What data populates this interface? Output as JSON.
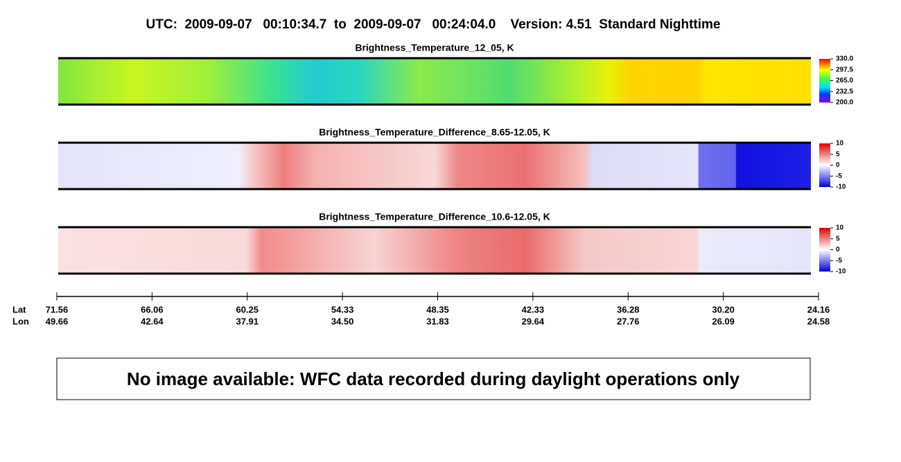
{
  "title": "UTC:  2009-09-07   00:10:34.7  to  2009-09-07   00:24:04.0    Version: 4.51  Standard Nighttime",
  "panels": [
    {
      "title": "Brightness_Temperature_12_05, K",
      "clim": [
        200,
        330
      ],
      "cticks": [
        {
          "value": 330,
          "label": "330.0"
        },
        {
          "value": 297.5,
          "label": "297.5"
        },
        {
          "value": 265,
          "label": "265.0"
        },
        {
          "value": 232.5,
          "label": "232.5"
        },
        {
          "value": 200,
          "label": "200.0"
        }
      ]
    },
    {
      "title": "Brightness_Temperature_Difference_8.65-12.05, K",
      "clim": [
        -10,
        10
      ],
      "cticks": [
        10,
        5,
        0,
        -5,
        -10
      ]
    },
    {
      "title": "Brightness_Temperature_Difference_10.6-12.05, K",
      "clim": [
        -10,
        10
      ],
      "cticks": [
        10,
        5,
        0,
        -5,
        -10
      ]
    }
  ],
  "axis": {
    "lat_label": "Lat",
    "lon_label": "Lon",
    "lat": [
      "71.56",
      "66.06",
      "60.25",
      "54.33",
      "48.35",
      "42.33",
      "36.28",
      "30.20",
      "24.16"
    ],
    "lon": [
      "49.66",
      "42.64",
      "37.91",
      "34.50",
      "31.83",
      "29.64",
      "27.76",
      "26.09",
      "24.58"
    ]
  },
  "message": "No image available: WFC data recorded during daylight operations only"
}
